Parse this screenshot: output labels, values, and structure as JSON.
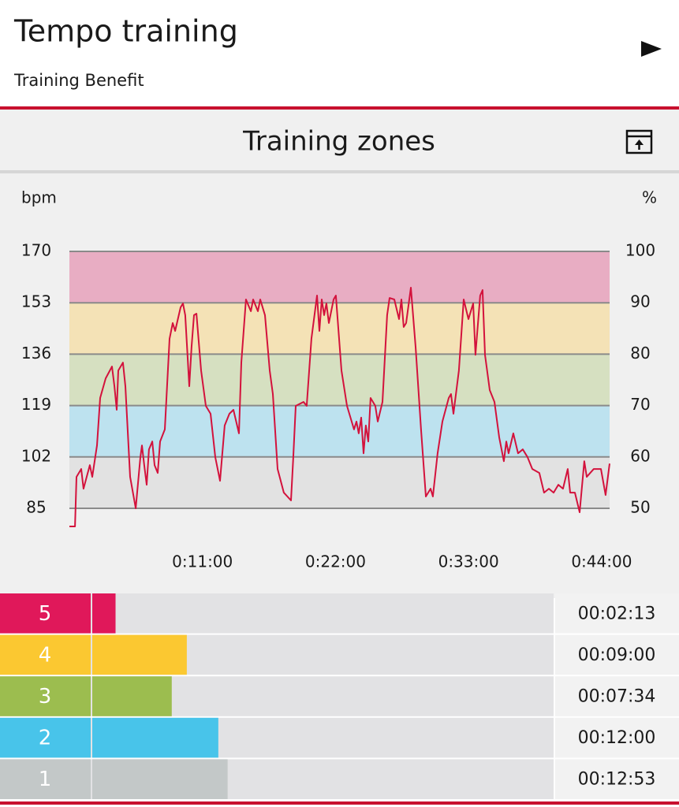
{
  "header": {
    "title": "Tempo training",
    "subtitle": "Training Benefit"
  },
  "section_title": "Training zones",
  "chart_data": {
    "type": "line",
    "y_label": "bpm",
    "y2_label": "%",
    "x": [
      0,
      0.46,
      0.59,
      0.98,
      1.17,
      1.69,
      1.89,
      2.28,
      2.54,
      3.0,
      3.52,
      3.72,
      3.91,
      4.04,
      4.43,
      4.63,
      5.02,
      5.48,
      5.87,
      6.0,
      6.19,
      6.39,
      6.58,
      6.85,
      7.04,
      7.3,
      7.5,
      7.89,
      8.28,
      8.54,
      8.74,
      9.19,
      9.39,
      9.58,
      9.91,
      10.1,
      10.3,
      10.5,
      10.89,
      11.28,
      11.67,
      12.06,
      12.45,
      12.84,
      13.23,
      13.56,
      14.02,
      14.21,
      14.6,
      15.0,
      15.19,
      15.58,
      15.78,
      16.17,
      16.56,
      16.82,
      17.21,
      17.73,
      18.32,
      18.51,
      18.71,
      19.36,
      19.62,
      20.01,
      20.47,
      20.67,
      20.86,
      21.06,
      21.25,
      21.45,
      21.84,
      22.03,
      22.49,
      22.95,
      23.53,
      23.73,
      23.92,
      24.12,
      24.32,
      24.51,
      24.71,
      24.9,
      25.29,
      25.49,
      25.88,
      26.27,
      26.47,
      26.86,
      27.25,
      27.45,
      27.64,
      27.84,
      28.23,
      28.62,
      29.07,
      29.47,
      29.86,
      30.05,
      30.44,
      30.84,
      31.36,
      31.55,
      31.75,
      32.2,
      32.6,
      32.99,
      33.38,
      33.57,
      33.96,
      34.16,
      34.36,
      34.75,
      35.14,
      35.53,
      35.92,
      36.12,
      36.31,
      36.7,
      37.09,
      37.48,
      37.88,
      38.27,
      38.85,
      39.24,
      39.64,
      40.03,
      40.42,
      40.81,
      41.2,
      41.4,
      41.79,
      42.18,
      42.57,
      42.77,
      43.35,
      43.94,
      44.33,
      44.66
    ],
    "values": [
      79.0,
      79.0,
      95.4,
      98.0,
      91.5,
      99.3,
      95.4,
      105.8,
      121.5,
      128.0,
      131.9,
      125.4,
      117.6,
      130.6,
      133.2,
      125.4,
      95.4,
      85.0,
      101.9,
      105.8,
      99.3,
      92.8,
      104.5,
      107.1,
      99.3,
      96.7,
      107.1,
      111.1,
      141.1,
      146.3,
      143.7,
      151.5,
      152.8,
      148.9,
      125.4,
      138.4,
      148.9,
      149.4,
      130.6,
      118.9,
      116.3,
      101.9,
      94.1,
      112.4,
      116.3,
      117.6,
      109.8,
      133.2,
      154.1,
      150.2,
      154.1,
      150.2,
      154.1,
      148.9,
      130.6,
      122.8,
      98.0,
      90.2,
      87.6,
      101.9,
      118.9,
      120.2,
      118.9,
      141.1,
      155.4,
      143.7,
      154.1,
      148.9,
      152.8,
      146.3,
      154.1,
      155.4,
      130.6,
      118.9,
      111.1,
      113.7,
      109.8,
      115.0,
      103.2,
      112.4,
      107.1,
      121.5,
      118.9,
      113.7,
      120.2,
      148.9,
      154.6,
      154.1,
      147.6,
      154.1,
      145.0,
      146.3,
      158.0,
      138.4,
      111.1,
      88.9,
      91.5,
      88.9,
      103.2,
      113.7,
      121.5,
      122.8,
      116.3,
      130.6,
      154.1,
      147.6,
      152.8,
      135.8,
      155.4,
      157.2,
      135.8,
      124.1,
      120.2,
      108.5,
      100.6,
      107.1,
      103.2,
      109.8,
      103.2,
      104.5,
      101.9,
      98.0,
      96.7,
      90.2,
      91.5,
      90.2,
      92.8,
      91.5,
      98.0,
      90.2,
      90.2,
      83.7,
      100.6,
      95.4,
      98.0,
      98.0,
      89.4,
      99.8
    ],
    "color": "#d3123c",
    "xlim": [
      0,
      44.66
    ],
    "xticks": [
      {
        "value": 11,
        "label": "0:11:00"
      },
      {
        "value": 22,
        "label": "0:22:00"
      },
      {
        "value": 33,
        "label": "0:33:00"
      },
      {
        "value": 44,
        "label": "0:44:00"
      }
    ],
    "ylim": [
      85,
      170
    ],
    "yticks": [
      85,
      102,
      119,
      136,
      153,
      170
    ],
    "y2lim": [
      50,
      100
    ],
    "y2ticks": [
      50,
      60,
      70,
      80,
      90,
      100
    ],
    "band_colors": [
      "#e2e2e2",
      "#bde2ef",
      "#d6e0c1",
      "#f4e2b6",
      "#e8adc3"
    ]
  },
  "zones": [
    {
      "zone": "5",
      "color": "#e0185a",
      "time": {
        "value": 133,
        "label": "00:02:13"
      }
    },
    {
      "zone": "4",
      "color": "#fbc831",
      "time": {
        "value": 540,
        "label": "00:09:00"
      }
    },
    {
      "zone": "3",
      "color": "#9cbd4f",
      "time": {
        "value": 454,
        "label": "00:07:34"
      }
    },
    {
      "zone": "2",
      "color": "#48c4ea",
      "time": {
        "value": 720,
        "label": "00:12:00"
      }
    },
    {
      "zone": "1",
      "color": "#c3c8c8",
      "time": {
        "value": 773,
        "label": "00:12:53"
      }
    }
  ]
}
